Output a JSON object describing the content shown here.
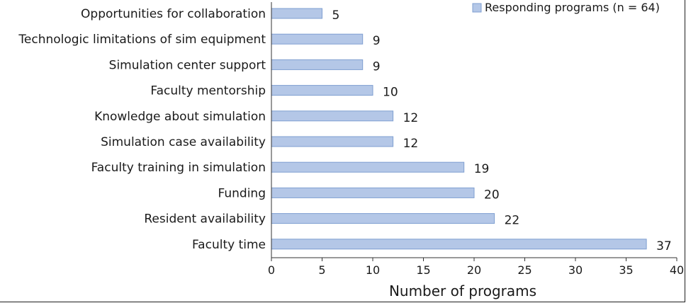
{
  "chart_data": {
    "type": "bar",
    "orientation": "horizontal",
    "categories": [
      "Opportunities for collaboration",
      "Technologic limitations of sim equipment",
      "Simulation center support",
      "Faculty mentorship",
      "Knowledge about simulation",
      "Simulation case availability",
      "Faculty training in simulation",
      "Funding",
      "Resident availability",
      "Faculty time"
    ],
    "series": [
      {
        "name": "Responding programs (n = 64)",
        "values": [
          5,
          9,
          9,
          10,
          12,
          12,
          19,
          20,
          22,
          37
        ]
      }
    ],
    "title": "",
    "xlabel": "Number of programs",
    "ylabel": "",
    "xlim": [
      0,
      40
    ],
    "xticks": [
      0,
      5,
      10,
      15,
      20,
      25,
      30,
      35,
      40
    ],
    "grid": false,
    "legend_position": "top-right",
    "colors": {
      "bar_fill": "#b4c7e7",
      "bar_stroke": "#7f9fd1",
      "axis": "#333333",
      "legend_fill": "#b4c7e7"
    }
  }
}
